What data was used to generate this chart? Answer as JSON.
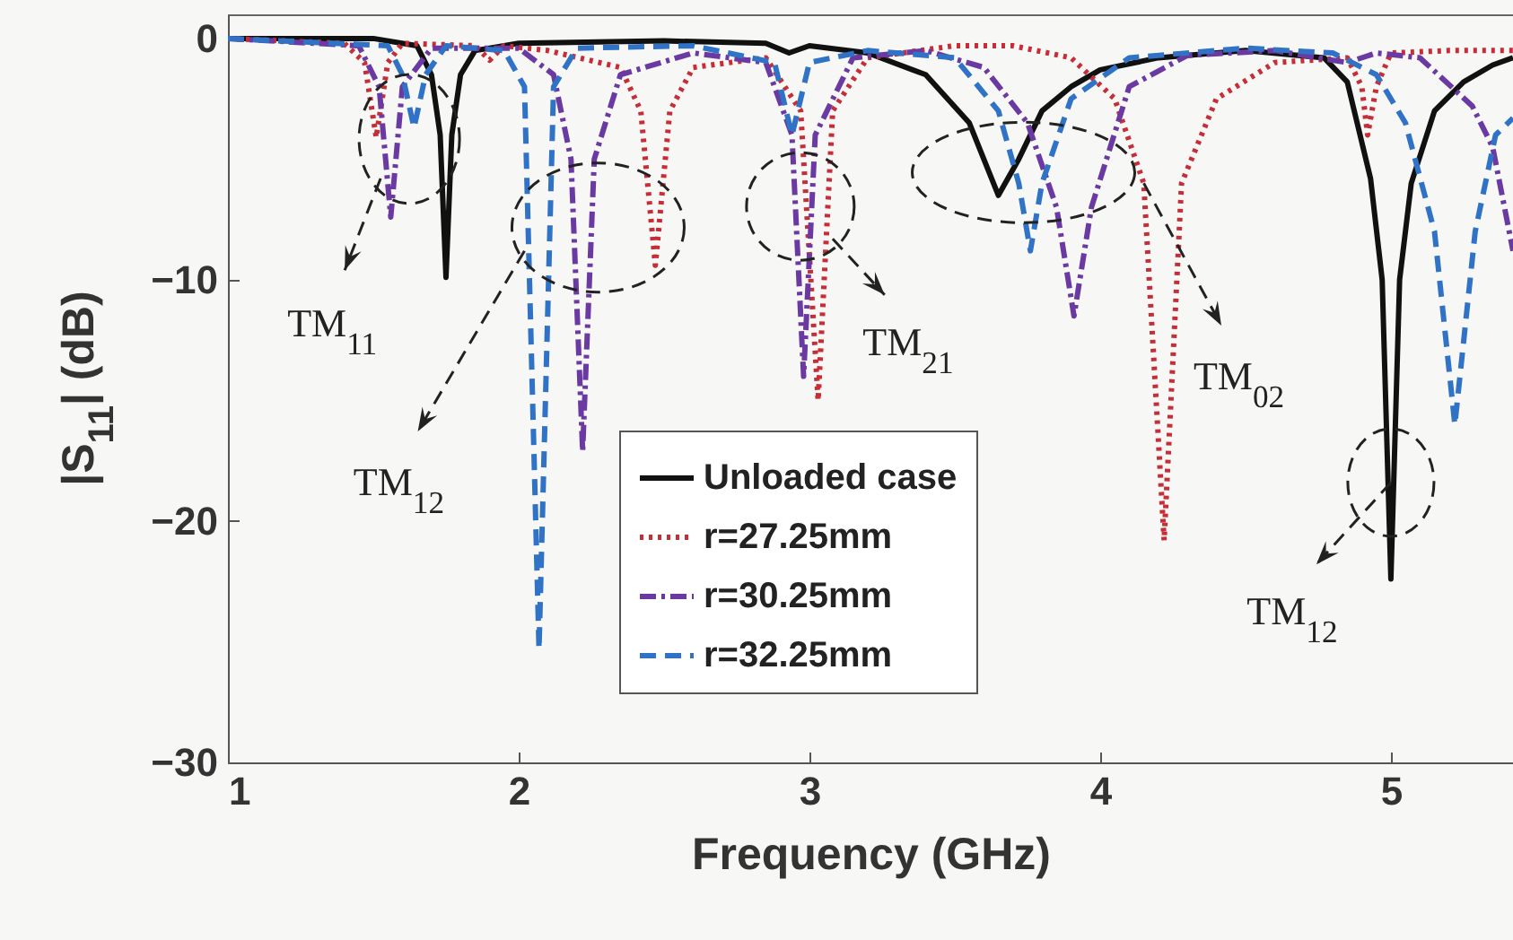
{
  "chart_data": {
    "type": "line",
    "xlabel": "Frequency (GHz)",
    "ylabel": "|S$_{11}$| (dB)",
    "xlim": [
      1,
      5.42
    ],
    "ylim": [
      -30,
      1
    ],
    "xticks": [
      1,
      2,
      3,
      4,
      5
    ],
    "yticks": [
      -30,
      -20,
      -10,
      0
    ],
    "grid": false,
    "legend": "bottom",
    "marker": "none",
    "series": [
      {
        "name": "Unloaded case",
        "color": "#111111",
        "line_style": "solid",
        "x": [
          1,
          1.5,
          1.65,
          1.7,
          1.73,
          1.75,
          1.77,
          1.8,
          1.85,
          2.0,
          2.5,
          2.85,
          2.93,
          3.0,
          3.2,
          3.4,
          3.55,
          3.65,
          3.72,
          3.8,
          3.9,
          4.0,
          4.2,
          4.5,
          4.77,
          4.85,
          4.93,
          4.97,
          5.0,
          5.03,
          5.07,
          5.15,
          5.25,
          5.35,
          5.42
        ],
        "values": [
          0,
          0,
          -0.3,
          -1.5,
          -4,
          -9.9,
          -4,
          -1.5,
          -0.5,
          -0.2,
          -0.1,
          -0.2,
          -0.6,
          -0.3,
          -0.6,
          -1.5,
          -3.5,
          -6.5,
          -5,
          -3,
          -2,
          -1.3,
          -0.8,
          -0.5,
          -0.8,
          -1.8,
          -5.8,
          -10,
          -22.4,
          -10,
          -6,
          -3,
          -1.8,
          -1.1,
          -0.8
        ]
      },
      {
        "name": "r=27.25mm",
        "color": "#c62d36",
        "line_style": "dotted",
        "x": [
          1,
          1.4,
          1.47,
          1.51,
          1.55,
          1.6,
          1.85,
          1.9,
          1.95,
          2.1,
          2.35,
          2.42,
          2.47,
          2.52,
          2.6,
          2.85,
          2.97,
          3.03,
          3.08,
          3.2,
          3.5,
          3.7,
          3.9,
          4.05,
          4.15,
          4.22,
          4.28,
          4.4,
          4.6,
          4.85,
          4.9,
          4.92,
          4.95,
          5.0,
          5.2,
          5.42
        ],
        "values": [
          0,
          -0.2,
          -1,
          -4.1,
          -1,
          -0.2,
          -0.3,
          -0.9,
          -0.3,
          -0.5,
          -1.2,
          -3,
          -9.4,
          -3,
          -1.2,
          -0.8,
          -3,
          -15,
          -3,
          -0.8,
          -0.3,
          -0.3,
          -0.8,
          -2.5,
          -6,
          -20.8,
          -6,
          -2.5,
          -1,
          -0.8,
          -2,
          -4,
          -2,
          -0.6,
          -0.5,
          -0.5
        ]
      },
      {
        "name": "r=30.25mm",
        "color": "#6a3aa2",
        "line_style": "dashdot",
        "x": [
          1,
          1.45,
          1.52,
          1.56,
          1.6,
          1.7,
          2.0,
          2.12,
          2.18,
          2.22,
          2.26,
          2.35,
          2.6,
          2.85,
          2.94,
          2.98,
          3.02,
          3.15,
          3.4,
          3.6,
          3.75,
          3.85,
          3.91,
          3.97,
          4.1,
          4.3,
          4.6,
          4.85,
          4.95,
          5.1,
          5.28,
          5.35,
          5.42
        ],
        "values": [
          0,
          -0.3,
          -2,
          -7.4,
          -2,
          -0.4,
          -0.4,
          -1.5,
          -5,
          -17.1,
          -5,
          -1.5,
          -0.6,
          -1,
          -4,
          -14,
          -4,
          -0.8,
          -0.5,
          -1.2,
          -3.5,
          -7,
          -11.5,
          -7,
          -2,
          -0.7,
          -0.5,
          -1,
          -0.6,
          -0.8,
          -2.8,
          -4.5,
          -8.8
        ]
      },
      {
        "name": "r=32.25mm",
        "color": "#2f72c6",
        "line_style": "dashed",
        "x": [
          1,
          1.55,
          1.6,
          1.64,
          1.68,
          1.75,
          1.95,
          2.02,
          2.07,
          2.12,
          2.2,
          2.6,
          2.88,
          2.94,
          3.0,
          3.2,
          3.5,
          3.65,
          3.72,
          3.76,
          3.8,
          3.9,
          4.1,
          4.5,
          4.8,
          4.95,
          5.05,
          5.15,
          5.22,
          5.29,
          5.36,
          5.42
        ],
        "values": [
          0,
          -0.3,
          -1.5,
          -3.7,
          -1.5,
          -0.3,
          -0.5,
          -2,
          -25.3,
          -2,
          -0.4,
          -0.3,
          -1,
          -4,
          -1,
          -0.5,
          -0.8,
          -3,
          -6,
          -8.8,
          -6,
          -2.5,
          -0.8,
          -0.4,
          -0.6,
          -1.5,
          -3.5,
          -8,
          -16,
          -8,
          -4,
          -3.3
        ]
      }
    ],
    "annotations": [
      {
        "text": "TM$_{11}$",
        "x": 1.525,
        "y": -5.8
      },
      {
        "text": "TM$_{12}$",
        "x": 2.02,
        "y": -8.8
      },
      {
        "text": "TM$_{21}$",
        "x": 3.08,
        "y": -8.3
      },
      {
        "text": "TM$_{02}$",
        "x": 4.15,
        "y": -6
      },
      {
        "text": "TM$_{12}$",
        "x": 5.0,
        "y": -18.4
      }
    ]
  }
}
